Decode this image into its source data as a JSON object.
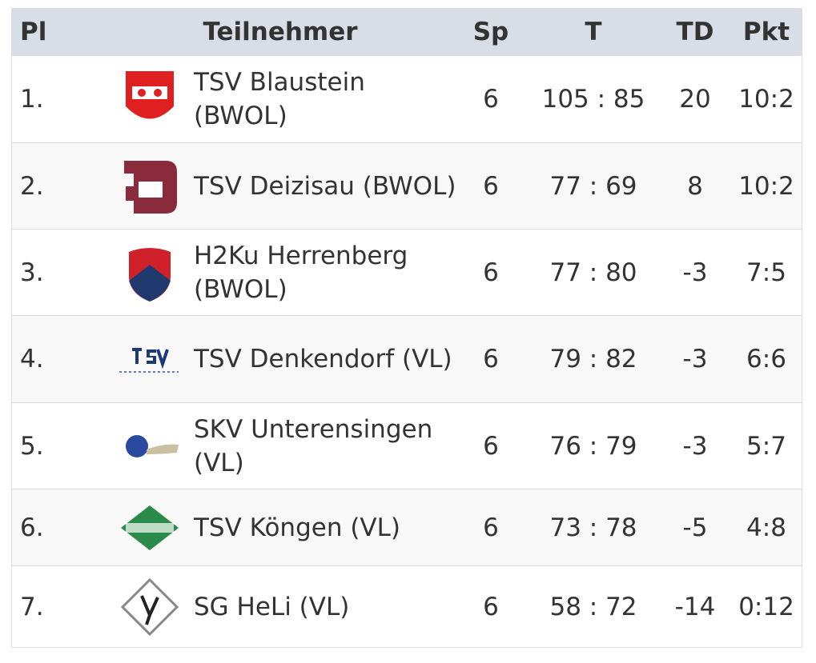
{
  "table": {
    "header": [
      "Pl",
      "Teilnehmer",
      "Sp",
      "T",
      "TD",
      "Pkt"
    ],
    "rows": [
      [
        "1.",
        "TSV Blaustein (BWOL)",
        6,
        "105 : 85",
        20,
        "10:2"
      ],
      [
        "2.",
        "TSV Deizisau (BWOL)",
        6,
        "77 : 69",
        8,
        "10:2"
      ],
      [
        "3.",
        "H2Ku Herrenberg (BWOL)",
        6,
        "77 : 80",
        -3,
        "7:5"
      ],
      [
        "4.",
        "TSV Denkendorf (VL)",
        6,
        "79 : 82",
        -3,
        "6:6"
      ],
      [
        "5.",
        "SKV Unterensingen (VL)",
        6,
        "76 : 79",
        -3,
        "5:7"
      ],
      [
        "6.",
        "TSV Köngen (VL)",
        6,
        "73 : 78",
        -5,
        "4:8"
      ],
      [
        "7.",
        "SG HeLi (VL)",
        6,
        "58 : 72",
        -14,
        "0:12"
      ]
    ]
  }
}
